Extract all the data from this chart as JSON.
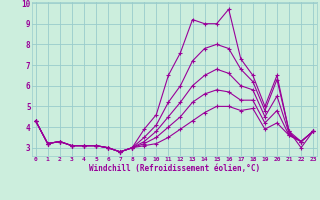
{
  "xlabel": "Windchill (Refroidissement éolien,°C)",
  "bg_color": "#cceedd",
  "line_color": "#990099",
  "grid_color": "#99cccc",
  "x_values": [
    0,
    1,
    2,
    3,
    4,
    5,
    6,
    7,
    8,
    9,
    10,
    11,
    12,
    13,
    14,
    15,
    16,
    17,
    18,
    19,
    20,
    21,
    22,
    23
  ],
  "series": {
    "line1": [
      4.3,
      3.2,
      3.3,
      3.1,
      3.1,
      3.1,
      3.0,
      2.8,
      3.0,
      3.9,
      4.6,
      6.5,
      7.6,
      9.2,
      9.0,
      9.0,
      9.7,
      7.3,
      6.5,
      5.0,
      6.5,
      3.8,
      3.0,
      3.8
    ],
    "line2": [
      4.3,
      3.2,
      3.3,
      3.1,
      3.1,
      3.1,
      3.0,
      2.8,
      3.0,
      3.5,
      4.1,
      5.2,
      6.0,
      7.2,
      7.8,
      8.0,
      7.8,
      6.8,
      6.2,
      4.8,
      6.3,
      3.8,
      3.3,
      3.8
    ],
    "line3": [
      4.3,
      3.2,
      3.3,
      3.1,
      3.1,
      3.1,
      3.0,
      2.8,
      3.0,
      3.3,
      3.8,
      4.5,
      5.2,
      6.0,
      6.5,
      6.8,
      6.6,
      6.0,
      5.8,
      4.5,
      5.5,
      3.7,
      3.3,
      3.8
    ],
    "line4": [
      4.3,
      3.2,
      3.3,
      3.1,
      3.1,
      3.1,
      3.0,
      2.8,
      3.0,
      3.2,
      3.5,
      4.0,
      4.5,
      5.2,
      5.6,
      5.8,
      5.7,
      5.3,
      5.3,
      4.2,
      4.8,
      3.6,
      3.3,
      3.8
    ],
    "line5": [
      4.3,
      3.2,
      3.3,
      3.1,
      3.1,
      3.1,
      3.0,
      2.8,
      3.0,
      3.1,
      3.2,
      3.5,
      3.9,
      4.3,
      4.7,
      5.0,
      5.0,
      4.8,
      4.9,
      3.9,
      4.2,
      3.6,
      3.3,
      3.8
    ]
  },
  "ylim": [
    2.6,
    10.05
  ],
  "xlim": [
    -0.3,
    23.3
  ],
  "yticks": [
    3,
    4,
    5,
    6,
    7,
    8,
    9,
    10
  ],
  "xticks": [
    0,
    1,
    2,
    3,
    4,
    5,
    6,
    7,
    8,
    9,
    10,
    11,
    12,
    13,
    14,
    15,
    16,
    17,
    18,
    19,
    20,
    21,
    22,
    23
  ],
  "marker_size": 2.5,
  "line_width": 0.8
}
